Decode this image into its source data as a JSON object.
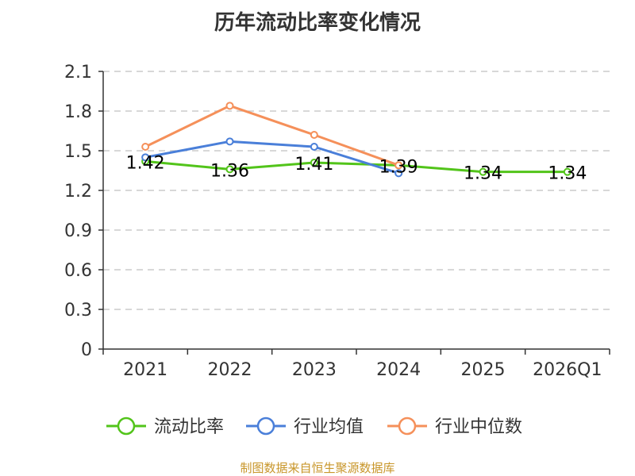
{
  "title": "历年流动比率变化情况",
  "source": "制图数据来自恒生聚源数据库",
  "chart_data": {
    "type": "line",
    "title": "历年流动比率变化情况",
    "xlabel": "",
    "ylabel": "",
    "categories": [
      "2021",
      "2022",
      "2023",
      "2024",
      "2025",
      "2026Q1"
    ],
    "ylim": [
      0,
      2.1
    ],
    "yticks": [
      0,
      0.3,
      0.6,
      0.9,
      1.2,
      1.5,
      1.8,
      2.1
    ],
    "ytick_labels": [
      "0",
      "0.3",
      "0.6",
      "0.9",
      "1.2",
      "1.5",
      "1.8",
      "2.1"
    ],
    "grid": true,
    "legend_position": "bottom",
    "series": [
      {
        "name": "流动比率",
        "color": "#52c41a",
        "values": [
          1.42,
          1.36,
          1.41,
          1.39,
          1.34,
          1.34
        ],
        "labels": [
          "1.42",
          "1.36",
          "1.41",
          "1.39",
          "1.34",
          "1.34"
        ]
      },
      {
        "name": "行业均值",
        "color": "#4a7fd9",
        "values": [
          1.45,
          1.57,
          1.53,
          1.33,
          null,
          null
        ]
      },
      {
        "name": "行业中位数",
        "color": "#f5905a",
        "values": [
          1.53,
          1.84,
          1.62,
          1.39,
          null,
          null
        ]
      }
    ]
  }
}
